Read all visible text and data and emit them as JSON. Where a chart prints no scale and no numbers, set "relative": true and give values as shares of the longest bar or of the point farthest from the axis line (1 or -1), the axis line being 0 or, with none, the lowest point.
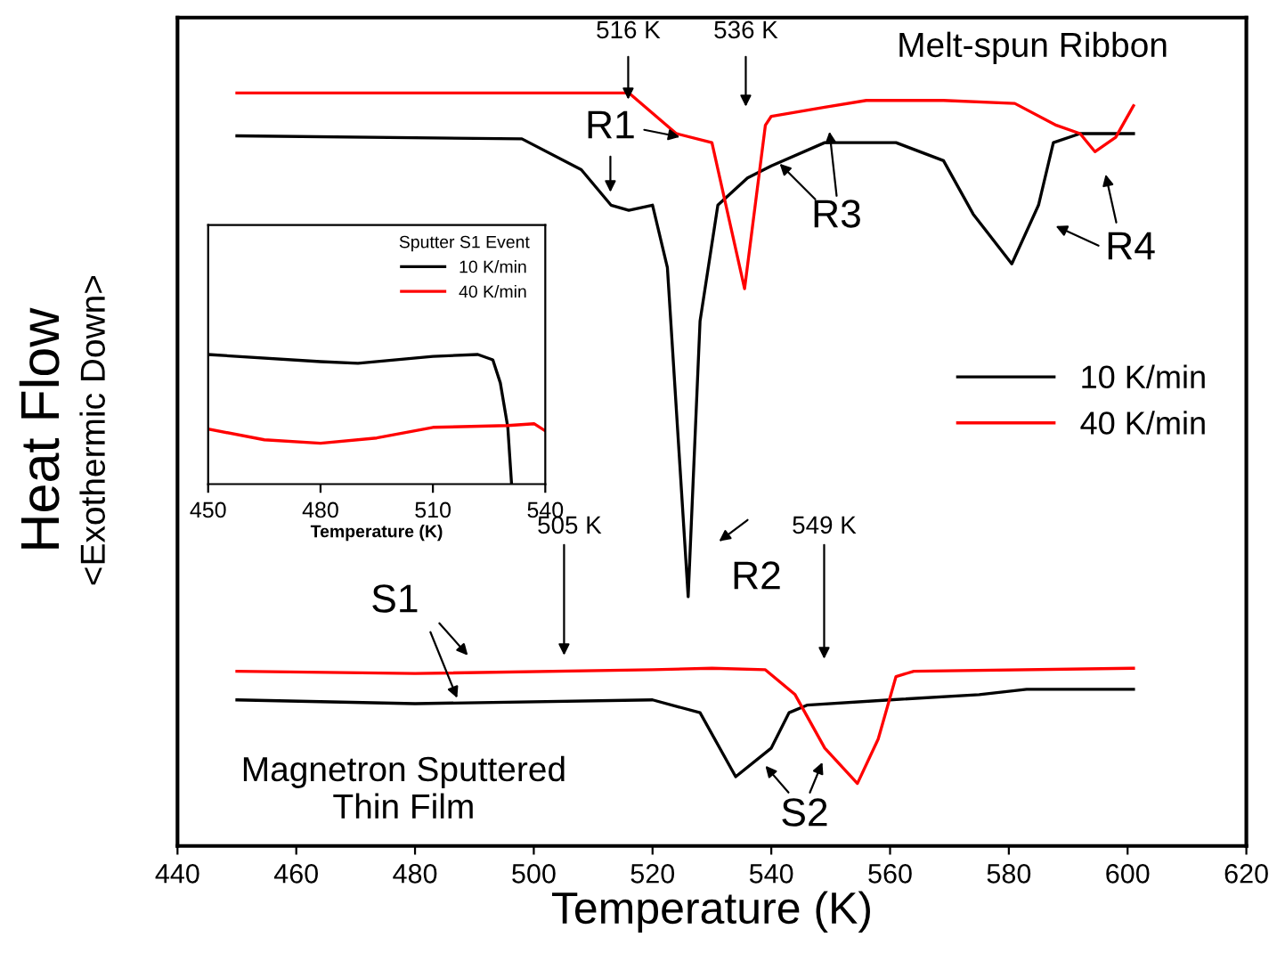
{
  "chart_data": [
    {
      "type": "line",
      "relative": true,
      "xlabel": "Temperature (K)",
      "ylabel": "Heat Flow\n<Exothermic Down>",
      "xlim": [
        440,
        620
      ],
      "xticks": [
        440,
        460,
        480,
        500,
        520,
        540,
        560,
        580,
        600,
        620
      ],
      "tick_labels": "x",
      "legend": "right",
      "grid": false,
      "series": [
        {
          "name": "10 K/min",
          "color": "#000000",
          "x": [
            450,
            498,
            508,
            513,
            516,
            520,
            522.5,
            526,
            528,
            531,
            536,
            540,
            549,
            561,
            569,
            574,
            580.5,
            585,
            587.5,
            592,
            601
          ],
          "values": [
            0.943,
            0.939,
            0.898,
            0.851,
            0.844,
            0.851,
            0.768,
            0.331,
            0.697,
            0.851,
            0.887,
            0.903,
            0.934,
            0.934,
            0.91,
            0.839,
            0.773,
            0.851,
            0.934,
            0.946,
            0.946
          ]
        },
        {
          "name": "40 K/min",
          "color": "#ff0000",
          "x": [
            450,
            516,
            524,
            530,
            535.5,
            539,
            540,
            549,
            556,
            569,
            581,
            588,
            592,
            594.5,
            598,
            601
          ],
          "values": [
            1.0,
            1.0,
            0.946,
            0.934,
            0.74,
            0.957,
            0.969,
            0.981,
            0.99,
            0.99,
            0.986,
            0.957,
            0.946,
            0.922,
            0.941,
            0.983
          ]
        },
        {
          "color": "#000000",
          "x": [
            450,
            480,
            520,
            528,
            534,
            540,
            543,
            546,
            560,
            575,
            583,
            601
          ],
          "values": [
            0.194,
            0.189,
            0.194,
            0.177,
            0.092,
            0.13,
            0.177,
            0.187,
            0.194,
            0.201,
            0.208,
            0.208
          ]
        },
        {
          "color": "#ff0000",
          "x": [
            450,
            480,
            520,
            530,
            539,
            544,
            549,
            554.5,
            558,
            561,
            564,
            601
          ],
          "values": [
            0.232,
            0.229,
            0.234,
            0.236,
            0.234,
            0.201,
            0.13,
            0.083,
            0.142,
            0.225,
            0.232,
            0.236
          ]
        }
      ],
      "annotations": [
        "516 K",
        "536 K",
        "R1",
        "R2",
        "R3",
        "R4",
        "Melt-spun Ribbon",
        "505 K",
        "549 K",
        "S1",
        "S2",
        "Magnetron Sputtered\nThin Film"
      ]
    },
    {
      "type": "line",
      "relative": true,
      "xlabel": "Temperature (K)",
      "xlim": [
        450,
        540
      ],
      "xticks": [
        450,
        480,
        510,
        540
      ],
      "tick_labels": "x",
      "legend": "top right",
      "legend_title": "Sputter S1 Event",
      "grid": false,
      "series": [
        {
          "name": "10 K/min",
          "color": "#000000",
          "x": [
            450,
            480,
            490,
            510,
            522,
            526,
            528,
            530,
            531
          ],
          "values": [
            1.0,
            0.945,
            0.932,
            0.986,
            1.0,
            0.959,
            0.781,
            0.438,
            0.0
          ]
        },
        {
          "name": "40 K/min",
          "color": "#ff0000",
          "x": [
            450,
            465,
            480,
            495,
            510,
            530,
            537,
            540
          ],
          "values": [
            0.425,
            0.342,
            0.315,
            0.356,
            0.438,
            0.452,
            0.466,
            0.411
          ]
        }
      ]
    }
  ]
}
